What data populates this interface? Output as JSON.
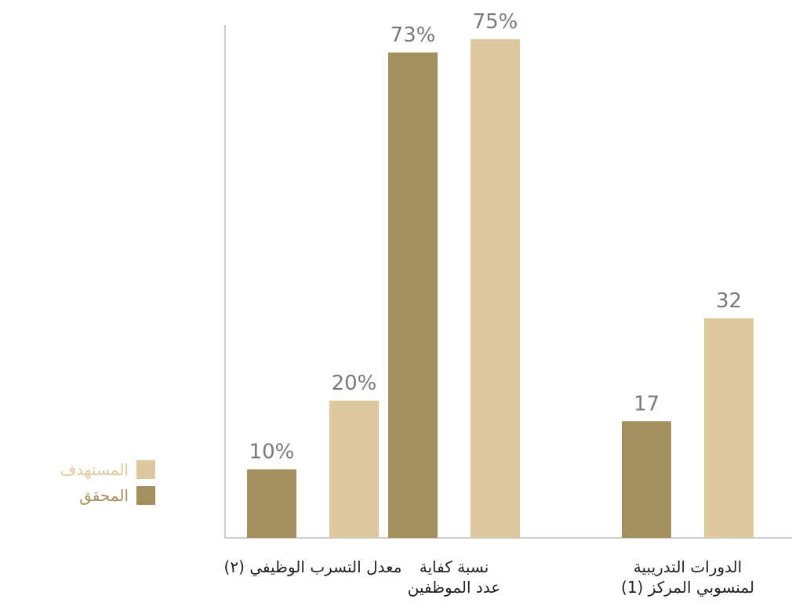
{
  "chart_data": {
    "type": "bar",
    "categories": [
      "الدورات التدريبية\nلمنسوبي المركز (1)",
      "نسبة كفاية\nعدد الموظفين",
      "معدل التسرب الوظيفي (٢)"
    ],
    "series": [
      {
        "name": "المحقق",
        "values": [
          17,
          73,
          10
        ],
        "labels": [
          "17",
          "73%",
          "10%"
        ],
        "color": "#a48f5f"
      },
      {
        "name": "المستهدف",
        "values": [
          32,
          75,
          20
        ],
        "labels": [
          "32",
          "75%",
          "20%"
        ],
        "color": "#dec8a0"
      }
    ],
    "grid": false,
    "legend_position": "left"
  },
  "colors": {
    "achieved": "#a48f5f",
    "target": "#dec8a0",
    "axis": "#9a9a9a",
    "value_label": "#7a7a7a",
    "category_label": "#222222"
  }
}
